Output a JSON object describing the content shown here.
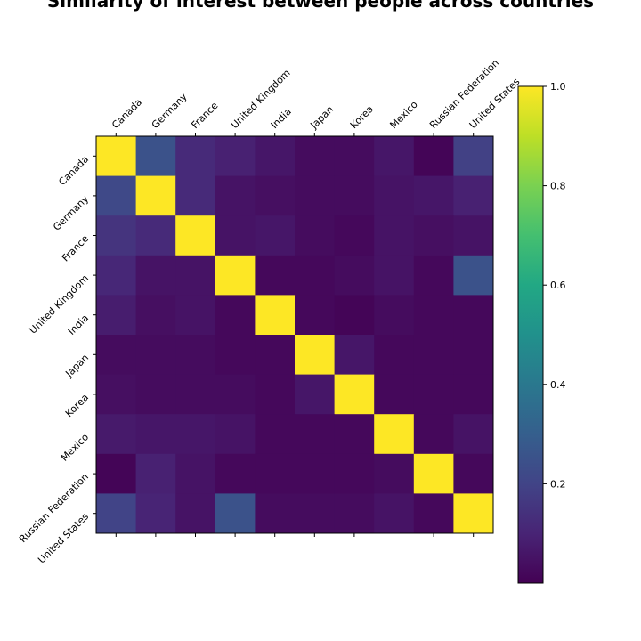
{
  "chart_data": {
    "type": "heatmap",
    "title": "Similarity of interest between people across countries",
    "labels": [
      "Canada",
      "Germany",
      "France",
      "United Kingdom",
      "India",
      "Japan",
      "Korea",
      "Mexico",
      "Russian Federation",
      "United States"
    ],
    "values": [
      [
        1.0,
        0.25,
        0.12,
        0.09,
        0.06,
        0.03,
        0.03,
        0.06,
        0.01,
        0.19
      ],
      [
        0.22,
        1.0,
        0.12,
        0.05,
        0.04,
        0.03,
        0.03,
        0.05,
        0.06,
        0.09
      ],
      [
        0.15,
        0.12,
        1.0,
        0.05,
        0.06,
        0.03,
        0.02,
        0.05,
        0.04,
        0.05
      ],
      [
        0.11,
        0.05,
        0.05,
        1.0,
        0.02,
        0.02,
        0.03,
        0.05,
        0.02,
        0.25
      ],
      [
        0.08,
        0.04,
        0.05,
        0.02,
        1.0,
        0.02,
        0.01,
        0.03,
        0.02,
        0.02
      ],
      [
        0.03,
        0.03,
        0.03,
        0.02,
        0.02,
        1.0,
        0.06,
        0.02,
        0.02,
        0.02
      ],
      [
        0.04,
        0.03,
        0.03,
        0.03,
        0.02,
        0.06,
        1.0,
        0.02,
        0.02,
        0.02
      ],
      [
        0.07,
        0.06,
        0.06,
        0.05,
        0.02,
        0.02,
        0.02,
        1.0,
        0.02,
        0.05
      ],
      [
        0.01,
        0.09,
        0.05,
        0.02,
        0.02,
        0.02,
        0.02,
        0.03,
        1.0,
        0.02
      ],
      [
        0.2,
        0.1,
        0.05,
        0.25,
        0.03,
        0.03,
        0.03,
        0.05,
        0.02,
        1.0
      ]
    ],
    "colormap": "viridis",
    "colorbar": {
      "min": 0.0,
      "max": 1.0,
      "ticks": [
        0.2,
        0.4,
        0.6,
        0.8,
        1.0
      ],
      "tick_labels": [
        "0.2",
        "0.4",
        "0.6",
        "0.8",
        "1.0"
      ]
    },
    "xlabel": "",
    "ylabel": "",
    "x_tick_position": "top",
    "grid": false
  }
}
